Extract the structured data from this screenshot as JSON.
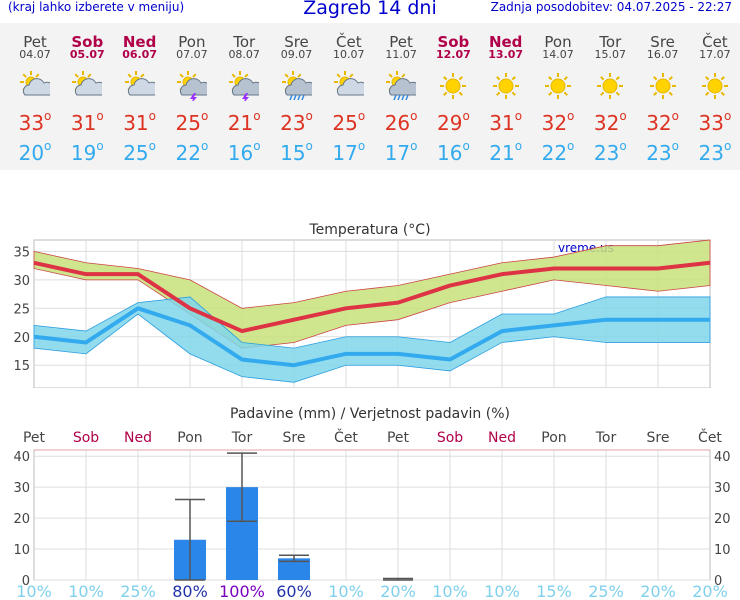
{
  "header": {
    "left": "(kraj lahko izberete v meniju)",
    "title": "Zagreb 14 dni",
    "updated": "Zadnja posodobitev: 04.07.2025 - 22:27"
  },
  "days": [
    {
      "name": "Pet",
      "date": "04.07",
      "weekend": false,
      "icon": "partly-cloudy-icon",
      "tmax": "33",
      "tmin": "20"
    },
    {
      "name": "Sob",
      "date": "05.07",
      "weekend": true,
      "icon": "partly-cloudy-icon",
      "tmax": "31",
      "tmin": "19"
    },
    {
      "name": "Ned",
      "date": "06.07",
      "weekend": true,
      "icon": "partly-cloudy-icon",
      "tmax": "31",
      "tmin": "25"
    },
    {
      "name": "Pon",
      "date": "07.07",
      "weekend": false,
      "icon": "thunderstorm-icon",
      "tmax": "25",
      "tmin": "22"
    },
    {
      "name": "Tor",
      "date": "08.07",
      "weekend": false,
      "icon": "thunderstorm-icon",
      "tmax": "21",
      "tmin": "16"
    },
    {
      "name": "Sre",
      "date": "09.07",
      "weekend": false,
      "icon": "sun-rain-icon",
      "tmax": "23",
      "tmin": "15"
    },
    {
      "name": "Čet",
      "date": "10.07",
      "weekend": false,
      "icon": "partly-cloudy-icon",
      "tmax": "25",
      "tmin": "17"
    },
    {
      "name": "Pet",
      "date": "11.07",
      "weekend": false,
      "icon": "rain-cloud-icon",
      "tmax": "26",
      "tmin": "17"
    },
    {
      "name": "Sob",
      "date": "12.07",
      "weekend": true,
      "icon": "sun-icon",
      "tmax": "29",
      "tmin": "16"
    },
    {
      "name": "Ned",
      "date": "13.07",
      "weekend": true,
      "icon": "sun-icon",
      "tmax": "31",
      "tmin": "21"
    },
    {
      "name": "Pon",
      "date": "14.07",
      "weekend": false,
      "icon": "sun-icon",
      "tmax": "32",
      "tmin": "22"
    },
    {
      "name": "Tor",
      "date": "15.07",
      "weekend": false,
      "icon": "sun-icon",
      "tmax": "32",
      "tmin": "23"
    },
    {
      "name": "Sre",
      "date": "16.07",
      "weekend": false,
      "icon": "sun-icon",
      "tmax": "32",
      "tmin": "23"
    },
    {
      "name": "Čet",
      "date": "17.07",
      "weekend": false,
      "icon": "sun-icon",
      "tmax": "33",
      "tmin": "23"
    }
  ],
  "chart_data": [
    {
      "type": "line",
      "title": "Temperatura (°C)",
      "watermark": "vreme.us",
      "ylim": [
        11,
        37
      ],
      "yticks": [
        15,
        20,
        25,
        30,
        35
      ],
      "grid": true,
      "series": [
        {
          "name": "max",
          "color": "#dd3344",
          "values": [
            33,
            31,
            31,
            25,
            21,
            23,
            25,
            26,
            29,
            31,
            32,
            32,
            32,
            33
          ],
          "band_high": [
            35,
            33,
            32,
            30,
            25,
            26,
            28,
            29,
            31,
            33,
            34,
            36,
            36,
            37
          ],
          "band_low": [
            32,
            30,
            30,
            24,
            18,
            19,
            22,
            23,
            26,
            28,
            30,
            29,
            28,
            29
          ]
        },
        {
          "name": "min",
          "color": "#33aaee",
          "values": [
            20,
            19,
            25,
            22,
            16,
            15,
            17,
            17,
            16,
            21,
            22,
            23,
            23,
            23
          ],
          "band_high": [
            22,
            21,
            26,
            27,
            19,
            18,
            20,
            20,
            19,
            24,
            24,
            27,
            27,
            27
          ],
          "band_low": [
            18,
            17,
            24,
            17,
            13,
            12,
            15,
            15,
            14,
            19,
            20,
            19,
            19,
            19
          ]
        }
      ]
    },
    {
      "type": "bar",
      "title": "Padavine (mm) / Verjetnost padavin (%)",
      "categories": [
        "Pet",
        "Sob",
        "Ned",
        "Pon",
        "Tor",
        "Sre",
        "Čet",
        "Pet",
        "Sob",
        "Ned",
        "Pon",
        "Tor",
        "Sre",
        "Čet"
      ],
      "values": [
        0,
        0,
        0,
        13,
        30,
        7,
        0,
        0,
        0,
        0,
        0,
        0,
        0,
        0
      ],
      "err_high": [
        0,
        0,
        0,
        26,
        41,
        8,
        0,
        0.5,
        0,
        0,
        0,
        0,
        0,
        0
      ],
      "err_low": [
        0,
        0,
        0,
        0,
        19,
        6,
        0,
        0,
        0,
        0,
        0,
        0,
        0,
        0
      ],
      "probability": [
        "10%",
        "10%",
        "25%",
        "80%",
        "100%",
        "60%",
        "10%",
        "20%",
        "10%",
        "10%",
        "15%",
        "25%",
        "20%",
        "20%"
      ],
      "ylim": [
        0,
        42
      ],
      "yticks": [
        0,
        10,
        20,
        30,
        40
      ]
    }
  ],
  "colors": {
    "weekend": "#b0004a",
    "max": "#dd3344",
    "min": "#33aaee",
    "bar": "#2a86e8"
  }
}
